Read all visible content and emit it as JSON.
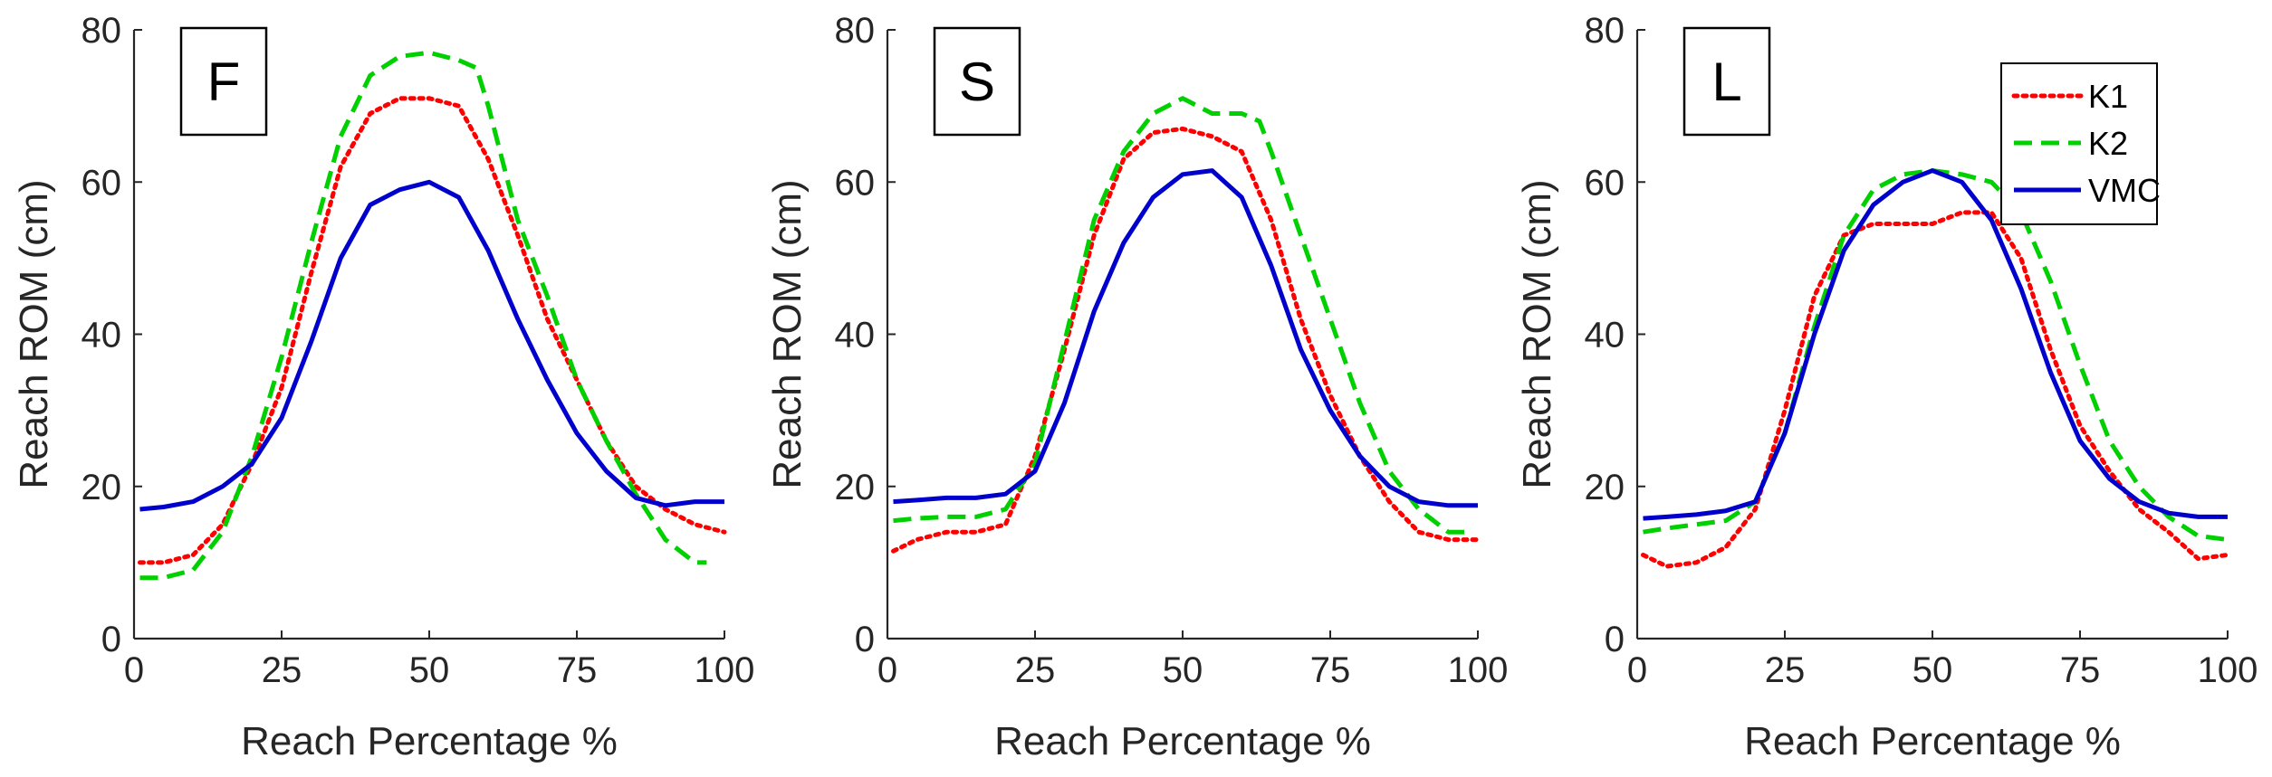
{
  "chart_data": [
    {
      "type": "line",
      "panel_label": "F",
      "xlabel": "Reach Percentage %",
      "ylabel": "Reach ROM (cm)",
      "xlim": [
        0,
        100
      ],
      "ylim": [
        0,
        80
      ],
      "xticks": [
        0,
        25,
        50,
        75,
        100
      ],
      "yticks": [
        0,
        20,
        40,
        60,
        80
      ],
      "xtick_labels": [
        "0",
        "25",
        "50",
        "75",
        "100"
      ],
      "ytick_labels": [
        "0",
        "20",
        "40",
        "60",
        "80"
      ],
      "grid": false,
      "series": [
        {
          "name": "K1",
          "color": "#ff0000",
          "style": "dotted",
          "x": [
            1,
            5,
            10,
            15,
            20,
            25,
            30,
            35,
            40,
            45,
            50,
            55,
            60,
            65,
            70,
            75,
            80,
            85,
            90,
            95,
            100
          ],
          "y": [
            10,
            10,
            11,
            15,
            23,
            33,
            48,
            62,
            69,
            71,
            71,
            70,
            63,
            53,
            42,
            34,
            26,
            20,
            17,
            15,
            14
          ]
        },
        {
          "name": "K2",
          "color": "#00d000",
          "style": "dashed",
          "x": [
            1,
            5,
            10,
            15,
            20,
            25,
            30,
            35,
            40,
            45,
            50,
            55,
            58,
            60,
            65,
            70,
            75,
            80,
            85,
            90,
            95,
            97
          ],
          "y": [
            8,
            8,
            9,
            14,
            24,
            37,
            52,
            66,
            74,
            76.5,
            77,
            76,
            75,
            70,
            55,
            45,
            34,
            26,
            19,
            13,
            10,
            10
          ]
        },
        {
          "name": "VMC",
          "color": "#0000cc",
          "style": "solid",
          "x": [
            1,
            5,
            10,
            15,
            20,
            25,
            30,
            35,
            40,
            45,
            50,
            55,
            60,
            65,
            70,
            75,
            80,
            85,
            90,
            95,
            100
          ],
          "y": [
            17,
            17.3,
            18,
            20,
            23,
            29,
            39,
            50,
            57,
            59,
            60,
            58,
            51,
            42,
            34,
            27,
            22,
            18.5,
            17.5,
            18,
            18
          ]
        }
      ]
    },
    {
      "type": "line",
      "panel_label": "S",
      "xlabel": "Reach Percentage %",
      "ylabel": "Reach ROM (cm)",
      "xlim": [
        0,
        100
      ],
      "ylim": [
        0,
        80
      ],
      "xticks": [
        0,
        25,
        50,
        75,
        100
      ],
      "yticks": [
        0,
        20,
        40,
        60,
        80
      ],
      "xtick_labels": [
        "0",
        "25",
        "50",
        "75",
        "100"
      ],
      "ytick_labels": [
        "0",
        "20",
        "40",
        "60",
        "80"
      ],
      "grid": false,
      "series": [
        {
          "name": "K1",
          "color": "#ff0000",
          "style": "dotted",
          "x": [
            1,
            5,
            10,
            15,
            20,
            25,
            30,
            35,
            40,
            45,
            50,
            55,
            60,
            65,
            70,
            75,
            80,
            85,
            90,
            95,
            100
          ],
          "y": [
            11.5,
            13,
            14,
            14,
            15,
            24,
            38,
            53,
            63,
            66.5,
            67,
            66,
            64,
            55,
            42,
            32,
            24,
            18,
            14,
            13,
            13
          ]
        },
        {
          "name": "K2",
          "color": "#00d000",
          "style": "dashed",
          "x": [
            1,
            5,
            10,
            15,
            20,
            25,
            30,
            35,
            40,
            45,
            50,
            55,
            60,
            63,
            65,
            70,
            75,
            80,
            85,
            90,
            95,
            98
          ],
          "y": [
            15.5,
            15.8,
            16,
            16,
            17,
            23,
            39,
            55,
            64,
            69,
            71,
            69,
            69,
            68,
            64,
            53,
            42,
            31,
            22,
            17,
            14,
            14
          ]
        },
        {
          "name": "VMC",
          "color": "#0000cc",
          "style": "solid",
          "x": [
            1,
            5,
            10,
            15,
            20,
            25,
            30,
            35,
            40,
            45,
            50,
            55,
            60,
            65,
            70,
            75,
            80,
            85,
            90,
            95,
            100
          ],
          "y": [
            18,
            18.2,
            18.5,
            18.5,
            19,
            22,
            31,
            43,
            52,
            58,
            61,
            61.5,
            58,
            49,
            38,
            30,
            24,
            20,
            18,
            17.5,
            17.5
          ]
        }
      ]
    },
    {
      "type": "line",
      "panel_label": "L",
      "xlabel": "Reach Percentage %",
      "ylabel": "Reach ROM (cm)",
      "xlim": [
        0,
        100
      ],
      "ylim": [
        0,
        80
      ],
      "xticks": [
        0,
        25,
        50,
        75,
        100
      ],
      "yticks": [
        0,
        20,
        40,
        60,
        80
      ],
      "xtick_labels": [
        "0",
        "25",
        "50",
        "75",
        "100"
      ],
      "ytick_labels": [
        "0",
        "20",
        "40",
        "60",
        "80"
      ],
      "grid": false,
      "legend": [
        "K1",
        "K2",
        "VMC"
      ],
      "legend_position": "top-right",
      "series": [
        {
          "name": "K1",
          "color": "#ff0000",
          "style": "dotted",
          "x": [
            1,
            5,
            10,
            15,
            20,
            25,
            30,
            35,
            40,
            45,
            50,
            55,
            60,
            65,
            70,
            75,
            80,
            85,
            90,
            95,
            100
          ],
          "y": [
            11,
            9.5,
            10,
            12,
            17,
            30,
            45,
            53,
            54.5,
            54.5,
            54.5,
            56,
            56,
            50,
            38,
            28,
            22,
            17,
            14,
            10.5,
            11
          ]
        },
        {
          "name": "K2",
          "color": "#00d000",
          "style": "dashed",
          "x": [
            1,
            5,
            10,
            15,
            20,
            25,
            30,
            35,
            40,
            45,
            50,
            55,
            60,
            65,
            70,
            75,
            80,
            85,
            90,
            95,
            100
          ],
          "y": [
            14,
            14.5,
            15,
            15.5,
            18,
            27,
            41,
            53,
            59,
            61,
            61.5,
            61,
            60,
            56,
            47,
            36,
            26,
            20,
            16,
            13.5,
            13
          ]
        },
        {
          "name": "VMC",
          "color": "#0000cc",
          "style": "solid",
          "x": [
            1,
            5,
            10,
            15,
            20,
            25,
            30,
            35,
            40,
            45,
            50,
            55,
            60,
            65,
            70,
            75,
            80,
            85,
            90,
            95,
            100
          ],
          "y": [
            15.8,
            16,
            16.3,
            16.8,
            18,
            27,
            40,
            51,
            57,
            60,
            61.5,
            60,
            55,
            46,
            35,
            26,
            21,
            18,
            16.5,
            16,
            16
          ]
        }
      ]
    }
  ]
}
